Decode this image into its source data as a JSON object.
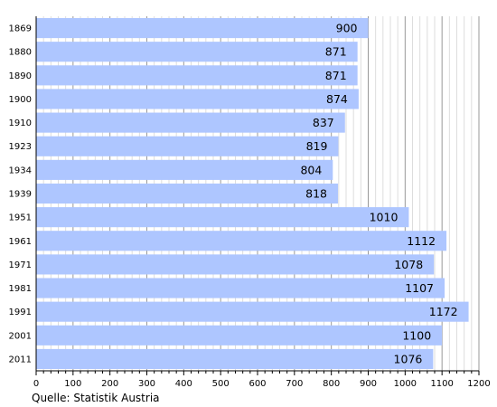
{
  "chart_data": {
    "type": "bar",
    "orientation": "horizontal",
    "categories": [
      "1869",
      "1880",
      "1890",
      "1900",
      "1910",
      "1923",
      "1934",
      "1939",
      "1951",
      "1961",
      "1971",
      "1981",
      "1991",
      "2001",
      "2011"
    ],
    "values": [
      900,
      871,
      871,
      874,
      837,
      819,
      804,
      818,
      1010,
      1112,
      1078,
      1107,
      1172,
      1100,
      1076
    ],
    "xlim": [
      0,
      1200
    ],
    "x_ticks": [
      "0",
      "100",
      "200",
      "300",
      "400",
      "500",
      "600",
      "700",
      "800",
      "900",
      "1000",
      "1100",
      "1200"
    ],
    "grid": "vertical",
    "bar_color": "#aec6ff",
    "data_labels": true
  },
  "source_note": "Quelle: Statistik Austria"
}
